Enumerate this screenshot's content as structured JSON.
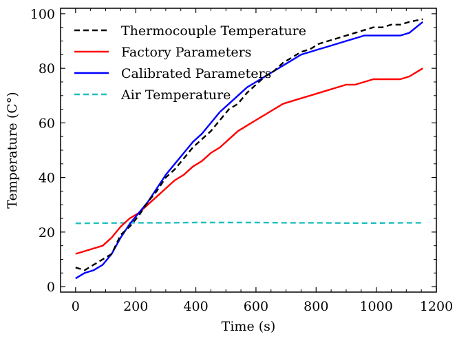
{
  "chart_data": {
    "type": "line",
    "title": "",
    "xlabel": "Time (s)",
    "ylabel": "Temperature (C°)",
    "xlim": [
      -50,
      1200
    ],
    "ylim": [
      -2,
      102
    ],
    "xticks": [
      0,
      200,
      400,
      600,
      800,
      1000,
      1200
    ],
    "yticks": [
      0,
      20,
      40,
      60,
      80,
      100
    ],
    "xtick_labels": [
      "0",
      "200",
      "400",
      "600",
      "800",
      "1000",
      "1200"
    ],
    "ytick_labels": [
      "0",
      "20",
      "40",
      "60",
      "80",
      "100"
    ],
    "grid": false,
    "legend": "top-left",
    "series": [
      {
        "name": "Thermocouple Temperature",
        "color": "#000000",
        "dashed": true,
        "x": [
          0,
          30,
          60,
          90,
          120,
          150,
          180,
          210,
          240,
          270,
          300,
          330,
          360,
          390,
          420,
          450,
          480,
          510,
          540,
          570,
          600,
          630,
          660,
          690,
          720,
          750,
          780,
          810,
          840,
          870,
          900,
          930,
          960,
          990,
          1020,
          1050,
          1080,
          1110,
          1155
        ],
        "y": [
          7,
          6,
          8,
          10,
          12,
          19,
          22,
          26,
          31,
          35,
          40,
          43,
          47,
          51,
          54,
          57,
          61,
          65,
          67,
          71,
          74,
          77,
          79,
          82,
          84,
          86,
          87,
          89,
          90,
          91,
          92,
          93,
          94,
          95,
          95,
          96,
          96,
          97,
          98
        ]
      },
      {
        "name": "Factory Parameters",
        "color": "#ff0000",
        "dashed": false,
        "x": [
          0,
          30,
          60,
          90,
          120,
          150,
          180,
          210,
          240,
          270,
          300,
          330,
          360,
          390,
          420,
          450,
          480,
          510,
          540,
          570,
          600,
          630,
          660,
          690,
          720,
          750,
          780,
          810,
          840,
          870,
          900,
          930,
          960,
          990,
          1020,
          1050,
          1080,
          1110,
          1155
        ],
        "y": [
          12,
          13,
          14,
          15,
          18,
          22,
          25,
          27,
          30,
          33,
          36,
          39,
          41,
          44,
          46,
          49,
          51,
          54,
          57,
          59,
          61,
          63,
          65,
          67,
          68,
          69,
          70,
          71,
          72,
          73,
          74,
          74,
          75,
          76,
          76,
          76,
          76,
          77,
          80
        ]
      },
      {
        "name": "Calibrated Parameters",
        "color": "#0000ff",
        "dashed": false,
        "x": [
          0,
          30,
          60,
          90,
          120,
          150,
          180,
          210,
          240,
          270,
          300,
          330,
          360,
          390,
          420,
          450,
          480,
          510,
          540,
          570,
          600,
          630,
          660,
          690,
          720,
          750,
          780,
          810,
          840,
          870,
          900,
          930,
          960,
          990,
          1020,
          1050,
          1080,
          1110,
          1155
        ],
        "y": [
          3,
          5,
          6,
          8,
          12,
          18,
          23,
          27,
          31,
          36,
          41,
          45,
          49,
          53,
          56,
          60,
          64,
          67,
          70,
          73,
          75,
          77,
          79,
          81,
          83,
          85,
          86,
          87,
          88,
          89,
          90,
          91,
          92,
          92,
          92,
          92,
          92,
          93,
          97
        ]
      },
      {
        "name": "Air Temperature",
        "color": "#1fbfbf",
        "dashed": true,
        "x": [
          0,
          100,
          200,
          300,
          400,
          500,
          600,
          700,
          800,
          900,
          1000,
          1100,
          1155
        ],
        "y": [
          23.2,
          23.3,
          23.4,
          23.4,
          23.5,
          23.5,
          23.5,
          23.4,
          23.4,
          23.3,
          23.3,
          23.4,
          23.4
        ]
      }
    ]
  }
}
